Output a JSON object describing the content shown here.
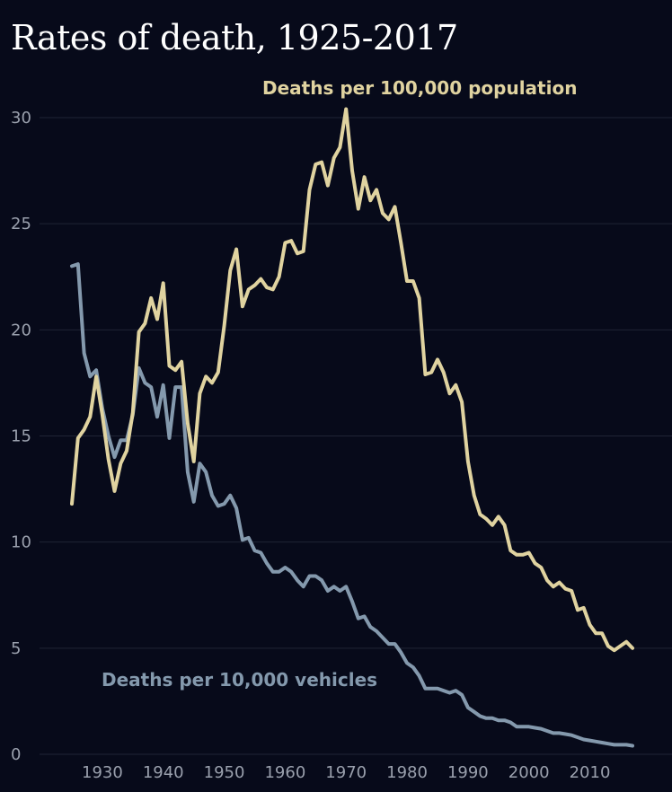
{
  "chart_data": {
    "type": "line",
    "title": "Rates of death, 1925-2017",
    "xlabel": "",
    "ylabel": "",
    "xlim": [
      1925,
      2017
    ],
    "ylim": [
      0,
      30
    ],
    "x_ticks": [
      1930,
      1940,
      1950,
      1960,
      1970,
      1980,
      1990,
      2000,
      2010
    ],
    "y_ticks": [
      0,
      5,
      10,
      15,
      20,
      25,
      30
    ],
    "grid": true,
    "background_color": "#070a1a",
    "series": [
      {
        "name": "Deaths per 100,000 population",
        "color": "#e0d3a0",
        "x": [
          1925,
          1926,
          1927,
          1928,
          1929,
          1930,
          1931,
          1932,
          1933,
          1934,
          1935,
          1936,
          1937,
          1938,
          1939,
          1940,
          1941,
          1942,
          1943,
          1944,
          1945,
          1946,
          1947,
          1948,
          1949,
          1950,
          1951,
          1952,
          1953,
          1954,
          1955,
          1956,
          1957,
          1958,
          1959,
          1960,
          1961,
          1962,
          1963,
          1964,
          1965,
          1966,
          1967,
          1968,
          1969,
          1970,
          1971,
          1972,
          1973,
          1974,
          1975,
          1976,
          1977,
          1978,
          1979,
          1980,
          1981,
          1982,
          1983,
          1984,
          1985,
          1986,
          1987,
          1988,
          1989,
          1990,
          1991,
          1992,
          1993,
          1994,
          1995,
          1996,
          1997,
          1998,
          1999,
          2000,
          2001,
          2002,
          2003,
          2004,
          2005,
          2006,
          2007,
          2008,
          2009,
          2010,
          2011,
          2012,
          2013,
          2014,
          2015,
          2016,
          2017
        ],
        "values": [
          11.8,
          14.9,
          15.3,
          15.9,
          17.8,
          16.0,
          13.9,
          12.4,
          13.7,
          14.3,
          16.1,
          19.9,
          20.3,
          21.5,
          20.5,
          22.2,
          18.3,
          18.1,
          18.5,
          15.6,
          13.8,
          17.0,
          17.8,
          17.5,
          18.0,
          20.2,
          22.8,
          23.8,
          21.1,
          21.9,
          22.1,
          22.4,
          22.0,
          21.9,
          22.5,
          24.1,
          24.2,
          23.6,
          23.7,
          26.6,
          27.8,
          27.9,
          26.8,
          28.1,
          28.6,
          30.4,
          27.5,
          25.7,
          27.2,
          26.1,
          26.6,
          25.5,
          25.2,
          25.8,
          24.1,
          22.3,
          22.3,
          21.5,
          17.9,
          18.0,
          18.6,
          18.0,
          17.0,
          17.4,
          16.6,
          13.8,
          12.2,
          11.3,
          11.1,
          10.8,
          11.2,
          10.8,
          9.6,
          9.4,
          9.4,
          9.5,
          9.0,
          8.8,
          8.2,
          7.9,
          8.1,
          7.8,
          7.7,
          6.8,
          6.9,
          6.1,
          5.7,
          5.7,
          5.1,
          4.9,
          5.1,
          5.3,
          5.0
        ]
      },
      {
        "name": "Deaths per 10,000 vehicles",
        "color": "#8499ad",
        "x": [
          1925,
          1926,
          1927,
          1928,
          1929,
          1930,
          1931,
          1932,
          1933,
          1934,
          1935,
          1936,
          1937,
          1938,
          1939,
          1940,
          1941,
          1942,
          1943,
          1944,
          1945,
          1946,
          1947,
          1948,
          1949,
          1950,
          1951,
          1952,
          1953,
          1954,
          1955,
          1956,
          1957,
          1958,
          1959,
          1960,
          1961,
          1962,
          1963,
          1964,
          1965,
          1966,
          1967,
          1968,
          1969,
          1970,
          1971,
          1972,
          1973,
          1974,
          1975,
          1976,
          1977,
          1978,
          1979,
          1980,
          1981,
          1982,
          1983,
          1984,
          1985,
          1986,
          1987,
          1988,
          1989,
          1990,
          1991,
          1992,
          1993,
          1994,
          1995,
          1996,
          1997,
          1998,
          1999,
          2000,
          2001,
          2002,
          2003,
          2004,
          2005,
          2006,
          2007,
          2008,
          2009,
          2010,
          2011,
          2012,
          2013,
          2014,
          2015,
          2016,
          2017
        ],
        "values": [
          23.0,
          23.1,
          18.9,
          17.8,
          18.1,
          16.3,
          15.0,
          14.0,
          14.8,
          14.8,
          16.0,
          18.2,
          17.5,
          17.3,
          15.9,
          17.4,
          14.9,
          17.3,
          17.3,
          13.3,
          11.9,
          13.7,
          13.3,
          12.2,
          11.7,
          11.8,
          12.2,
          11.6,
          10.1,
          10.2,
          9.6,
          9.5,
          9.0,
          8.6,
          8.6,
          8.8,
          8.6,
          8.2,
          7.9,
          8.4,
          8.4,
          8.2,
          7.7,
          7.9,
          7.7,
          7.9,
          7.2,
          6.4,
          6.5,
          6.0,
          5.8,
          5.5,
          5.2,
          5.2,
          4.8,
          4.3,
          4.1,
          3.7,
          3.1,
          3.1,
          3.1,
          3.0,
          2.9,
          3.0,
          2.8,
          2.2,
          2.0,
          1.8,
          1.7,
          1.7,
          1.6,
          1.6,
          1.5,
          1.3,
          1.3,
          1.3,
          1.25,
          1.2,
          1.1,
          1.0,
          1.0,
          0.95,
          0.9,
          0.8,
          0.7,
          0.65,
          0.6,
          0.55,
          0.5,
          0.45,
          0.45,
          0.45,
          0.4
        ]
      }
    ]
  }
}
